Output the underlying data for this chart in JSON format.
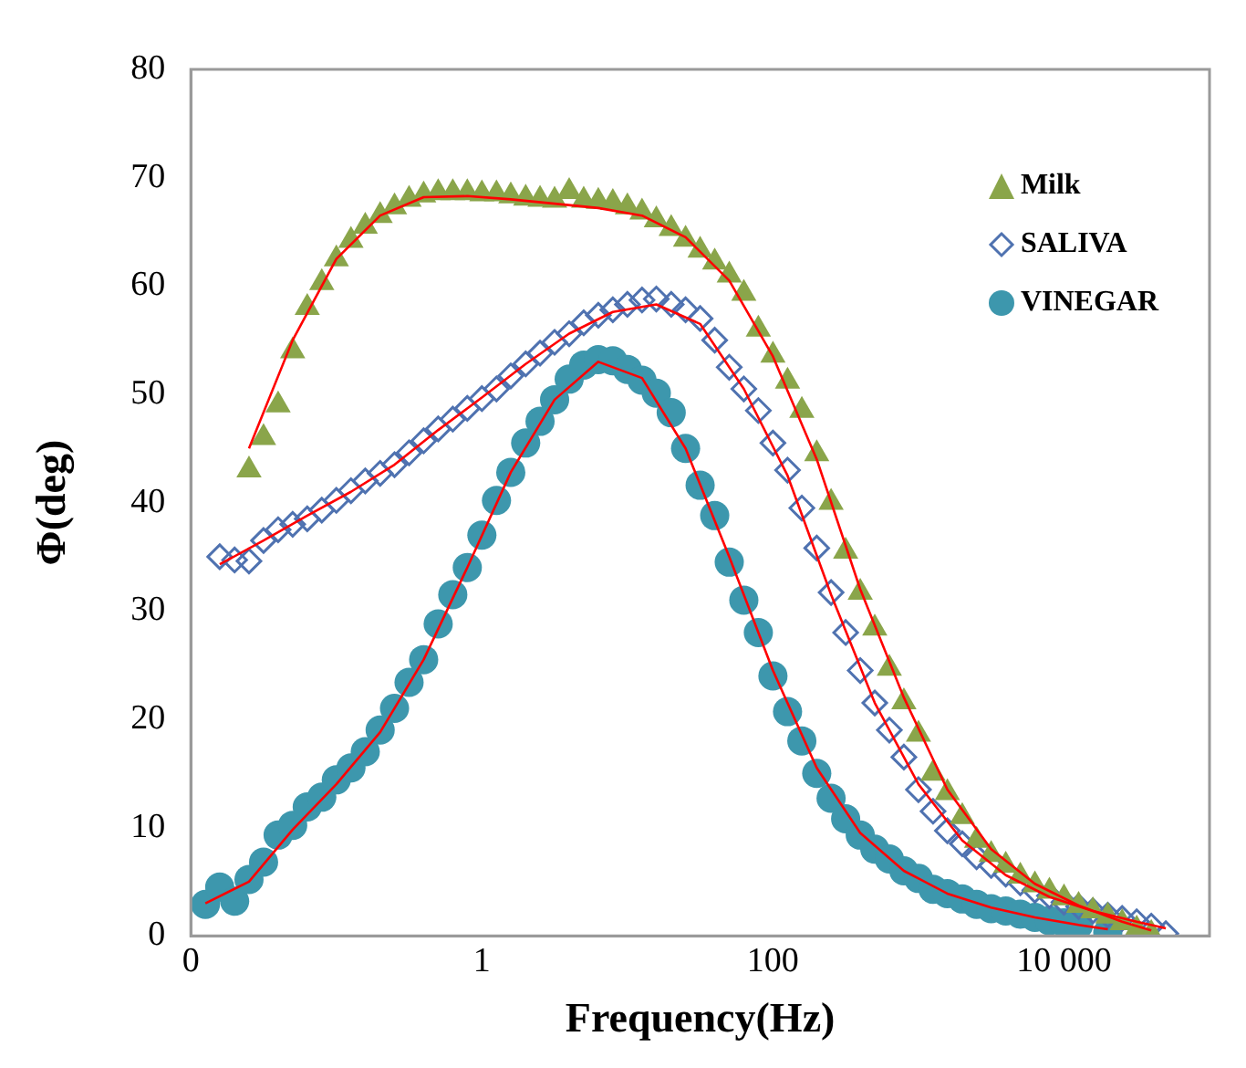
{
  "chart_data": {
    "type": "scatter",
    "xlabel": "Frequency(Hz)",
    "ylabel": "Φ(deg)",
    "log": "x",
    "xlim": [
      0.01,
      100000
    ],
    "xticks": [
      {
        "value": 0.01,
        "label": "0"
      },
      1,
      100,
      {
        "value": 10000,
        "label": "10 000"
      }
    ],
    "ylim": [
      0,
      80
    ],
    "yticks": [
      0,
      10,
      20,
      30,
      40,
      50,
      60,
      70,
      80
    ],
    "grid": false,
    "legend": "top right",
    "series": [
      {
        "name": "Milk",
        "color": "#8aa54a",
        "marker": "triangle",
        "x": [
          0.0251,
          0.0316,
          0.0398,
          0.0501,
          0.0631,
          0.0794,
          0.1,
          0.126,
          0.158,
          0.2,
          0.251,
          0.316,
          0.398,
          0.501,
          0.631,
          0.794,
          1,
          1.26,
          1.58,
          2,
          2.51,
          3.16,
          3.98,
          5.01,
          6.31,
          7.94,
          10,
          12.6,
          15.8,
          20,
          25.1,
          31.6,
          39.8,
          50.1,
          63.1,
          79.4,
          100,
          126,
          158,
          200,
          251,
          316,
          398,
          501,
          631,
          794,
          1000,
          1260,
          1580,
          2000,
          2510,
          3160,
          3980,
          5010,
          6310,
          7940,
          10000,
          12600,
          15800,
          20000,
          25100,
          31600,
          39800
        ],
        "values": [
          43,
          46,
          49,
          54,
          58,
          60.3,
          62.5,
          64.2,
          65.5,
          66.5,
          67.3,
          68,
          68.4,
          68.6,
          68.6,
          68.6,
          68.5,
          68.5,
          68.3,
          68.1,
          68,
          67.9,
          68.7,
          67.9,
          67.8,
          67.7,
          67.3,
          66.8,
          66.1,
          65.3,
          64.3,
          63.3,
          62.2,
          61,
          59.3,
          56,
          53.6,
          51.2,
          48.5,
          44.5,
          40,
          35.5,
          31.7,
          28.4,
          24.7,
          21.6,
          18.6,
          15,
          13.2,
          11,
          8.8,
          7.5,
          6.5,
          5.5,
          4.7,
          4.1,
          3.5,
          2.8,
          2.3,
          1.8,
          1.2,
          0.6,
          0.2
        ]
      },
      {
        "name": "SALIVA",
        "color": "#4f72b0",
        "marker": "diamond",
        "x": [
          0.0158,
          0.02,
          0.0251,
          0.0316,
          0.0398,
          0.0501,
          0.0631,
          0.0794,
          0.1,
          0.126,
          0.158,
          0.2,
          0.251,
          0.316,
          0.398,
          0.501,
          0.631,
          0.794,
          1,
          1.26,
          1.58,
          2,
          2.51,
          3.16,
          3.98,
          5.01,
          6.31,
          7.94,
          10,
          12.6,
          15.8,
          20,
          25.1,
          31.6,
          39.8,
          50.1,
          63.1,
          79.4,
          100,
          126,
          158,
          200,
          251,
          316,
          398,
          501,
          631,
          794,
          1000,
          1260,
          1580,
          2000,
          2510,
          3160,
          3980,
          5010,
          6310,
          7940,
          10000,
          12600,
          15800,
          20000,
          25100,
          31600,
          39800,
          50100
        ],
        "values": [
          35,
          34.7,
          34.6,
          36.5,
          37.5,
          38,
          38.5,
          39.3,
          40.2,
          41.1,
          42,
          42.7,
          43.5,
          44.6,
          45.7,
          46.8,
          47.7,
          48.7,
          49.6,
          50.5,
          51.7,
          52.8,
          53.8,
          54.8,
          55.6,
          56.6,
          57.3,
          57.8,
          58.3,
          58.7,
          58.8,
          58.3,
          57.8,
          57,
          55,
          52.5,
          50.5,
          48.5,
          45.5,
          43,
          39.5,
          35.8,
          31.7,
          28,
          24.5,
          21.5,
          19,
          16.5,
          13.5,
          11.5,
          9.7,
          8.5,
          7.3,
          6.5,
          5.7,
          4.9,
          4.2,
          3.7,
          3.1,
          2.7,
          2.3,
          1.9,
          1.6,
          1.3,
          0.9,
          0.2
        ]
      },
      {
        "name": "VINEGAR",
        "color": "#3d97ad",
        "marker": "circle",
        "x": [
          0.0126,
          0.0158,
          0.02,
          0.0251,
          0.0316,
          0.0398,
          0.0501,
          0.0631,
          0.0794,
          0.1,
          0.126,
          0.158,
          0.2,
          0.251,
          0.316,
          0.398,
          0.501,
          0.631,
          0.794,
          1,
          1.26,
          1.58,
          2,
          2.51,
          3.16,
          3.98,
          5.01,
          6.31,
          7.94,
          10,
          12.6,
          15.8,
          20,
          25.1,
          31.6,
          39.8,
          50.1,
          63.1,
          79.4,
          100,
          126,
          158,
          200,
          251,
          316,
          398,
          501,
          631,
          794,
          1000,
          1260,
          1580,
          2000,
          2510,
          3160,
          3980,
          5010,
          6310,
          7940,
          10000,
          12600,
          15800,
          20000
        ],
        "values": [
          2.9,
          4.5,
          3.2,
          5.2,
          6.8,
          9.3,
          10.2,
          11.9,
          12.8,
          14.4,
          15.5,
          17,
          19,
          21,
          23.4,
          25.5,
          28.8,
          31.5,
          34,
          37,
          40.2,
          42.8,
          45.5,
          47.5,
          49.5,
          51.4,
          52.7,
          53.2,
          53.1,
          52.3,
          51.3,
          50.1,
          48.3,
          45,
          41.6,
          38.8,
          34.5,
          31,
          28,
          24,
          20.7,
          18,
          15,
          12.7,
          10.8,
          9.3,
          8,
          7.1,
          6,
          5.3,
          4.3,
          3.9,
          3.4,
          2.9,
          2.5,
          2.3,
          2,
          1.7,
          1.4,
          1.2,
          1,
          null,
          0.3
        ]
      },
      {
        "type": "line",
        "color": "#ff0000",
        "marker": "none",
        "x": [
          0.0251,
          0.0501,
          0.1,
          0.2,
          0.398,
          0.794,
          1.58,
          3.16,
          6.31,
          12.6,
          25.1,
          50.1,
          100,
          200,
          398,
          794,
          1580,
          3160,
          6310,
          12600,
          25100,
          39800
        ],
        "values": [
          45,
          55,
          62.5,
          66.5,
          68.2,
          68.3,
          68,
          67.6,
          67.2,
          66.5,
          64.5,
          60.5,
          53.5,
          44,
          32,
          22,
          13.5,
          8,
          4.8,
          2.8,
          1.3,
          0.5
        ]
      },
      {
        "type": "line",
        "color": "#ff0000",
        "marker": "none",
        "x": [
          0.0158,
          0.0316,
          0.0631,
          0.126,
          0.251,
          0.501,
          1,
          2,
          3.98,
          7.94,
          15.8,
          31.6,
          63.1,
          126,
          251,
          501,
          1000,
          2000,
          3980,
          7940,
          15800,
          31600,
          50100
        ],
        "values": [
          34.3,
          36.5,
          38.8,
          41,
          43.5,
          46.7,
          49.7,
          52.8,
          55.6,
          57.6,
          58.3,
          56.5,
          50.5,
          42.5,
          31.5,
          21.5,
          14,
          8.8,
          5.6,
          3.6,
          2.3,
          1.3,
          0.7
        ]
      },
      {
        "type": "line",
        "color": "#ff0000",
        "marker": "none",
        "x": [
          0.0126,
          0.0251,
          0.0501,
          0.1,
          0.2,
          0.398,
          0.794,
          1.58,
          3.16,
          6.31,
          12.6,
          25.1,
          50.1,
          100,
          200,
          398,
          794,
          1580,
          3160,
          6310,
          12600,
          20000
        ],
        "values": [
          3,
          5,
          9.8,
          14,
          18.8,
          25.5,
          34,
          42.8,
          49.5,
          53,
          51.5,
          45,
          35,
          24.5,
          15.5,
          9.5,
          6,
          3.9,
          2.6,
          1.7,
          1,
          0.6
        ]
      }
    ]
  }
}
